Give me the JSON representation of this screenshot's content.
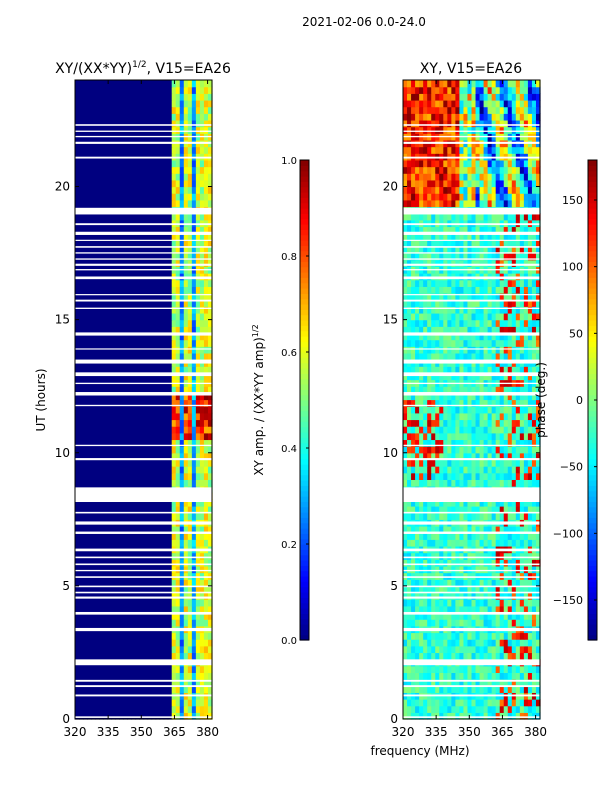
{
  "suptitle": "2021-02-06 0.0-24.0",
  "xlabel_shared": "frequency (MHz)",
  "chart_data": [
    {
      "type": "heatmap",
      "panel": "amplitude",
      "title_main": "XY/(XX*YY)",
      "title_sup": "1/2",
      "title_tail": ", V15=EA26",
      "ylabel": "UT (hours)",
      "xlim": [
        320,
        382
      ],
      "ylim": [
        0,
        24
      ],
      "xticks": [
        320,
        335,
        350,
        365,
        380
      ],
      "yticks": [
        0,
        5,
        10,
        15,
        20
      ],
      "colormap": "jet",
      "colorbar": {
        "label_main": "XY amp. / (XX*YY amp)",
        "label_sup": "1/2",
        "range": [
          0.0,
          1.0
        ],
        "ticks": [
          "0.0",
          "0.2",
          "0.4",
          "0.6",
          "0.8",
          "1.0"
        ],
        "tick_values": [
          0.0,
          0.2,
          0.4,
          0.6,
          0.8,
          1.0
        ]
      },
      "bright_channels_mhz": [
        364.5,
        366,
        370,
        371.5,
        375,
        378.5,
        380
      ],
      "high_amp_ut_range": [
        10.5,
        12.3
      ]
    },
    {
      "type": "heatmap",
      "panel": "phase",
      "title": "XY, V15=EA26",
      "xlim": [
        320,
        382
      ],
      "ylim": [
        0,
        24
      ],
      "xticks": [
        320,
        335,
        350,
        365,
        380
      ],
      "yticks": [
        0,
        5,
        10,
        15,
        20
      ],
      "colormap": "jet",
      "colorbar": {
        "label": "phase (deg.)",
        "range": [
          -180,
          180
        ],
        "ticks": [
          "150",
          "100",
          "50",
          "0",
          "−50",
          "−100",
          "−150"
        ],
        "tick_values": [
          150,
          100,
          50,
          0,
          -50,
          -100,
          -150
        ]
      }
    }
  ],
  "gaps_ut": [
    [
      0.04,
      0.1
    ],
    [
      0.85,
      0.92
    ],
    [
      1.2,
      1.27
    ],
    [
      1.4,
      1.47
    ],
    [
      2.02,
      2.24
    ],
    [
      3.3,
      3.42
    ],
    [
      3.92,
      4.02
    ],
    [
      4.52,
      4.6
    ],
    [
      4.72,
      4.78
    ],
    [
      4.95,
      5.01
    ],
    [
      5.3,
      5.36
    ],
    [
      5.55,
      5.6
    ],
    [
      5.78,
      5.84
    ],
    [
      6.04,
      6.1
    ],
    [
      6.3,
      6.4
    ],
    [
      6.95,
      7.04
    ],
    [
      7.3,
      7.42
    ],
    [
      7.72,
      7.78
    ],
    [
      8.15,
      8.7
    ],
    [
      9.72,
      9.8
    ],
    [
      10.25,
      10.3
    ],
    [
      11.75,
      11.8
    ],
    [
      12.15,
      12.28
    ],
    [
      12.58,
      12.63
    ],
    [
      12.88,
      13.02
    ],
    [
      13.35,
      13.5
    ],
    [
      13.88,
      13.92
    ],
    [
      14.4,
      14.52
    ],
    [
      15.4,
      15.45
    ],
    [
      15.68,
      15.75
    ],
    [
      15.92,
      15.96
    ],
    [
      16.52,
      16.62
    ],
    [
      16.85,
      16.9
    ],
    [
      17.02,
      17.1
    ],
    [
      17.25,
      17.3
    ],
    [
      17.48,
      17.53
    ],
    [
      17.7,
      17.76
    ],
    [
      17.96,
      18.0
    ],
    [
      18.18,
      18.3
    ],
    [
      18.55,
      18.62
    ],
    [
      18.95,
      19.2
    ],
    [
      21.05,
      21.12
    ],
    [
      21.6,
      21.68
    ],
    [
      21.85,
      21.9
    ],
    [
      22.05,
      22.1
    ],
    [
      22.28,
      22.34
    ]
  ]
}
